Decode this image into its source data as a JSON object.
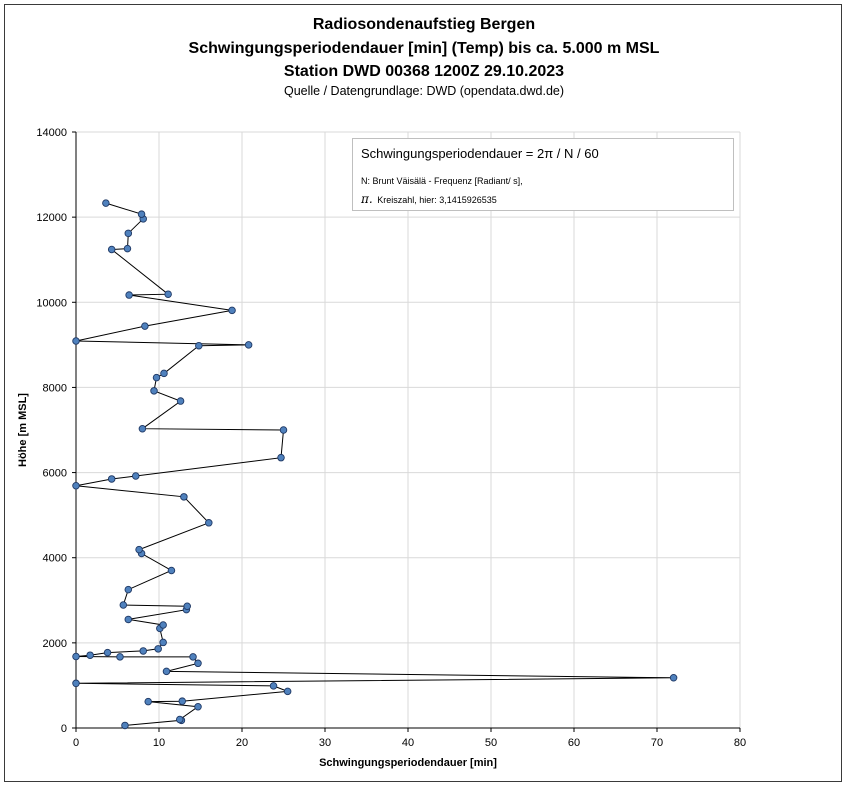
{
  "title_lines": [
    "Radiosondenaufstieg Bergen",
    "Schwingungsperiodendauer [min] (Temp) bis ca. 5.000 m MSL",
    "Station DWD 00368 1200Z 29.10.2023"
  ],
  "source": "Quelle / Datengrundlage: DWD (opendata.dwd.de)",
  "legend": {
    "formula": "Schwingungsperiodendauer = 2π / N / 60",
    "n_def": "N: Brunt Väisälä - Frequenz [Radiant/ s],",
    "pi_symbol": "π.",
    "pi_def": "Kreiszahl, hier: 3,1415926535"
  },
  "colors": {
    "marker_fill": "#4f81bd",
    "marker_stroke": "#1f3864",
    "line": "#000000",
    "grid": "#d9d9d9"
  },
  "chart_data": {
    "type": "scatter",
    "title": "Radiosondenaufstieg Bergen / Schwingungsperiodendauer [min] (Temp) bis ca. 5.000 m MSL / Station DWD 00368 1200Z 29.10.2023",
    "xlabel": "Schwingungsperiodendauer [min]",
    "ylabel": "Höhe [m MSL]",
    "xlim": [
      0,
      80
    ],
    "ylim": [
      0,
      14000
    ],
    "x_ticks": [
      "0",
      "10",
      "20",
      "30",
      "40",
      "50",
      "60",
      "70",
      "80"
    ],
    "y_ticks": [
      "0",
      "2000",
      "4000",
      "6000",
      "8000",
      "10000",
      "12000",
      "14000"
    ],
    "grid": true,
    "series": [
      {
        "lines_connected": true,
        "points": [
          [
            5.9,
            60
          ],
          [
            12.7,
            180
          ],
          [
            12.5,
            200
          ],
          [
            14.7,
            500
          ],
          [
            8.7,
            620
          ],
          [
            12.8,
            630
          ],
          [
            25.5,
            860
          ],
          [
            23.8,
            990
          ],
          [
            0.0,
            1050
          ],
          [
            72.0,
            1180
          ],
          [
            10.9,
            1330
          ],
          [
            14.7,
            1520
          ],
          [
            14.1,
            1670
          ],
          [
            5.3,
            1670
          ],
          [
            0.0,
            1680
          ],
          [
            1.7,
            1710
          ],
          [
            3.8,
            1770
          ],
          [
            8.1,
            1810
          ],
          [
            9.9,
            1860
          ],
          [
            10.5,
            2010
          ],
          [
            10.1,
            2340
          ],
          [
            10.5,
            2420
          ],
          [
            6.3,
            2550
          ],
          [
            13.3,
            2780
          ],
          [
            13.4,
            2860
          ],
          [
            5.7,
            2890
          ],
          [
            6.3,
            3250
          ],
          [
            11.5,
            3700
          ],
          [
            7.9,
            4100
          ],
          [
            7.6,
            4190
          ],
          [
            16.0,
            4820
          ],
          [
            13.0,
            5430
          ],
          [
            0.0,
            5690
          ],
          [
            4.3,
            5850
          ],
          [
            7.2,
            5920
          ],
          [
            24.7,
            6350
          ],
          [
            25.0,
            7000
          ],
          [
            8.0,
            7030
          ],
          [
            12.6,
            7680
          ],
          [
            9.4,
            7920
          ],
          [
            9.7,
            8230
          ],
          [
            10.6,
            8330
          ],
          [
            14.8,
            8980
          ],
          [
            20.8,
            9000
          ],
          [
            0.0,
            9090
          ],
          [
            8.3,
            9440
          ],
          [
            18.8,
            9810
          ],
          [
            6.4,
            10170
          ],
          [
            11.1,
            10190
          ],
          [
            4.3,
            11240
          ],
          [
            6.2,
            11260
          ],
          [
            6.3,
            11620
          ],
          [
            8.1,
            11960
          ],
          [
            7.9,
            12070
          ],
          [
            3.6,
            12330
          ]
        ]
      }
    ]
  }
}
